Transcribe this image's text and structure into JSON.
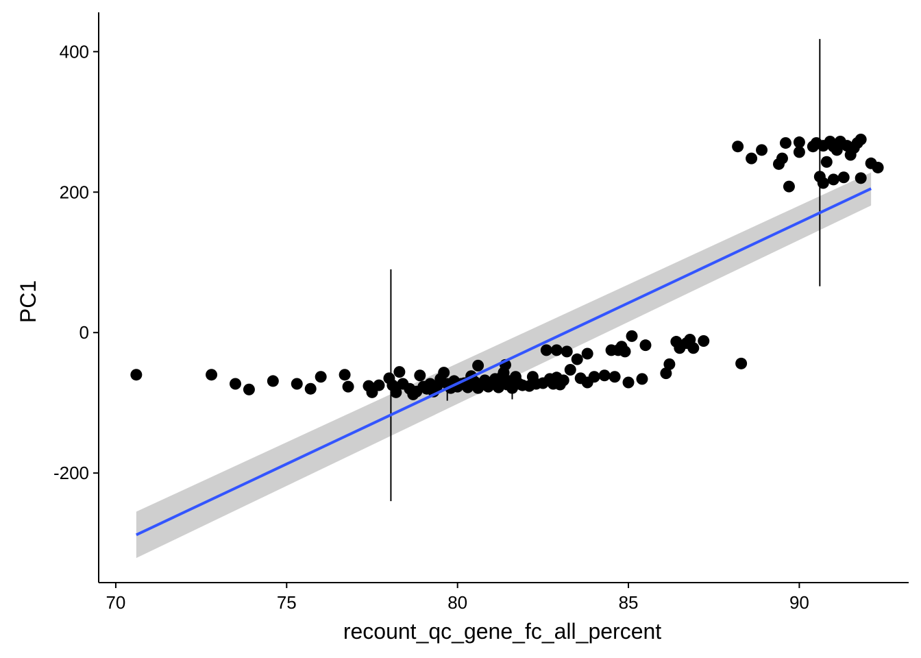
{
  "chart_data": {
    "type": "scatter",
    "title": "",
    "xlabel": "recount_qc_gene_fc_all_percent",
    "ylabel": "PC1",
    "xlim": [
      69.5,
      93.2
    ],
    "ylim": [
      -356,
      456
    ],
    "x_ticks": [
      70,
      75,
      80,
      85,
      90
    ],
    "y_ticks": [
      -200,
      0,
      200,
      400
    ],
    "x_tick_labels": [
      "70",
      "75",
      "80",
      "85",
      "90"
    ],
    "y_tick_labels": [
      "-200",
      "0",
      "200",
      "400"
    ],
    "grid": false,
    "legend": "none",
    "colors": {
      "points": "#000000",
      "fit_line": "#3355FF",
      "confidence_band": "#CCCCCC",
      "axes": "#000000"
    },
    "points": [
      [
        70.6,
        -60
      ],
      [
        72.8,
        -60
      ],
      [
        73.5,
        -73
      ],
      [
        73.9,
        -81
      ],
      [
        74.6,
        -69
      ],
      [
        75.3,
        -73
      ],
      [
        75.7,
        -80
      ],
      [
        76.0,
        -63
      ],
      [
        76.7,
        -60
      ],
      [
        76.8,
        -77
      ],
      [
        77.4,
        -76
      ],
      [
        77.5,
        -85
      ],
      [
        77.7,
        -75
      ],
      [
        78.0,
        -65
      ],
      [
        78.1,
        -75
      ],
      [
        78.2,
        -85
      ],
      [
        78.3,
        -56
      ],
      [
        78.4,
        -73
      ],
      [
        78.6,
        -80
      ],
      [
        78.7,
        -88
      ],
      [
        78.8,
        -84
      ],
      [
        78.9,
        -61
      ],
      [
        79.0,
        -77
      ],
      [
        79.1,
        -80
      ],
      [
        79.2,
        -73
      ],
      [
        79.3,
        -84
      ],
      [
        79.4,
        -76
      ],
      [
        79.5,
        -66
      ],
      [
        79.6,
        -57
      ],
      [
        79.7,
        -73
      ],
      [
        79.8,
        -79
      ],
      [
        79.9,
        -69
      ],
      [
        80.0,
        -77
      ],
      [
        80.1,
        -73
      ],
      [
        80.2,
        -72
      ],
      [
        80.3,
        -78
      ],
      [
        80.4,
        -62
      ],
      [
        80.5,
        -70
      ],
      [
        80.6,
        -47
      ],
      [
        80.6,
        -79
      ],
      [
        80.7,
        -74
      ],
      [
        80.8,
        -68
      ],
      [
        80.9,
        -77
      ],
      [
        81.0,
        -72
      ],
      [
        81.1,
        -66
      ],
      [
        81.2,
        -78
      ],
      [
        81.3,
        -63
      ],
      [
        81.35,
        -57
      ],
      [
        81.4,
        -46
      ],
      [
        81.45,
        -74
      ],
      [
        81.5,
        -69
      ],
      [
        81.6,
        -79
      ],
      [
        81.7,
        -63
      ],
      [
        81.8,
        -73
      ],
      [
        81.9,
        -75
      ],
      [
        82.1,
        -76
      ],
      [
        82.2,
        -63
      ],
      [
        82.3,
        -73
      ],
      [
        82.5,
        -72
      ],
      [
        82.6,
        -25
      ],
      [
        82.7,
        -66
      ],
      [
        82.8,
        -73
      ],
      [
        82.9,
        -64
      ],
      [
        83.0,
        -74
      ],
      [
        83.1,
        -68
      ],
      [
        82.9,
        -25
      ],
      [
        83.2,
        -27
      ],
      [
        83.3,
        -53
      ],
      [
        83.5,
        -38
      ],
      [
        83.6,
        -65
      ],
      [
        83.8,
        -30
      ],
      [
        83.8,
        -71
      ],
      [
        84.0,
        -63
      ],
      [
        84.3,
        -61
      ],
      [
        84.6,
        -63
      ],
      [
        84.5,
        -25
      ],
      [
        84.7,
        -25
      ],
      [
        84.8,
        -20
      ],
      [
        84.9,
        -27
      ],
      [
        85.0,
        -71
      ],
      [
        85.1,
        -5
      ],
      [
        85.4,
        -66
      ],
      [
        85.5,
        -18
      ],
      [
        86.1,
        -58
      ],
      [
        86.2,
        -45
      ],
      [
        86.4,
        -13
      ],
      [
        86.5,
        -22
      ],
      [
        86.7,
        -15
      ],
      [
        86.8,
        -10
      ],
      [
        86.9,
        -22
      ],
      [
        87.2,
        -12
      ],
      [
        88.3,
        -44
      ],
      [
        88.2,
        265
      ],
      [
        88.6,
        248
      ],
      [
        88.9,
        260
      ],
      [
        89.4,
        240
      ],
      [
        89.5,
        248
      ],
      [
        89.6,
        270
      ],
      [
        89.7,
        208
      ],
      [
        90.0,
        257
      ],
      [
        90.0,
        271
      ],
      [
        90.4,
        265
      ],
      [
        90.5,
        270
      ],
      [
        90.6,
        222
      ],
      [
        90.7,
        213
      ],
      [
        90.7,
        266
      ],
      [
        90.8,
        243
      ],
      [
        90.9,
        272
      ],
      [
        91.0,
        218
      ],
      [
        91.0,
        265
      ],
      [
        91.1,
        260
      ],
      [
        91.2,
        272
      ],
      [
        91.3,
        221
      ],
      [
        91.4,
        266
      ],
      [
        91.5,
        253
      ],
      [
        91.6,
        263
      ],
      [
        91.7,
        270
      ],
      [
        91.8,
        275
      ],
      [
        91.8,
        220
      ],
      [
        92.1,
        241
      ],
      [
        92.3,
        235
      ]
    ],
    "fit_line": {
      "x": [
        70.6,
        92.1
      ],
      "y": [
        -288,
        205
      ],
      "ci_lower": [
        -321,
        181
      ],
      "ci_upper": [
        -255,
        228
      ]
    },
    "vertical_lines": [
      {
        "x": 78.05,
        "y_from": -240,
        "y_to": 90
      },
      {
        "x": 90.6,
        "y_from": 66,
        "y_to": 418
      },
      {
        "x": 79.7,
        "y_from": -97,
        "y_to": -72
      },
      {
        "x": 81.6,
        "y_from": -95,
        "y_to": -70
      }
    ]
  }
}
